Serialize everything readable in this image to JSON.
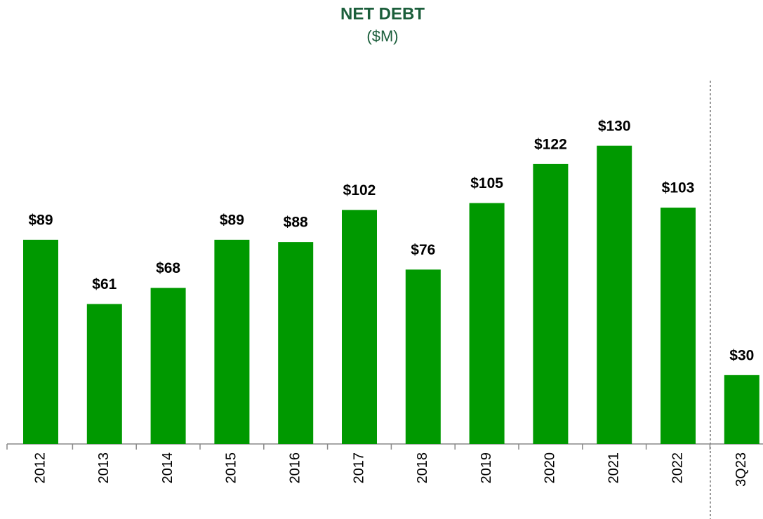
{
  "chart_data": {
    "type": "bar",
    "title": "NET DEBT",
    "subtitle": "($M)",
    "categories": [
      "2012",
      "2013",
      "2014",
      "2015",
      "2016",
      "2017",
      "2018",
      "2019",
      "2020",
      "2021",
      "2022",
      "3Q23"
    ],
    "values": [
      89,
      61,
      68,
      89,
      88,
      102,
      76,
      105,
      122,
      130,
      103,
      30
    ],
    "value_labels": [
      "$89",
      "$61",
      "$68",
      "$89",
      "$88",
      "$102",
      "$76",
      "$105",
      "$122",
      "$130",
      "$103",
      "$30"
    ],
    "color": "#009900",
    "ylim": [
      0,
      140
    ]
  }
}
